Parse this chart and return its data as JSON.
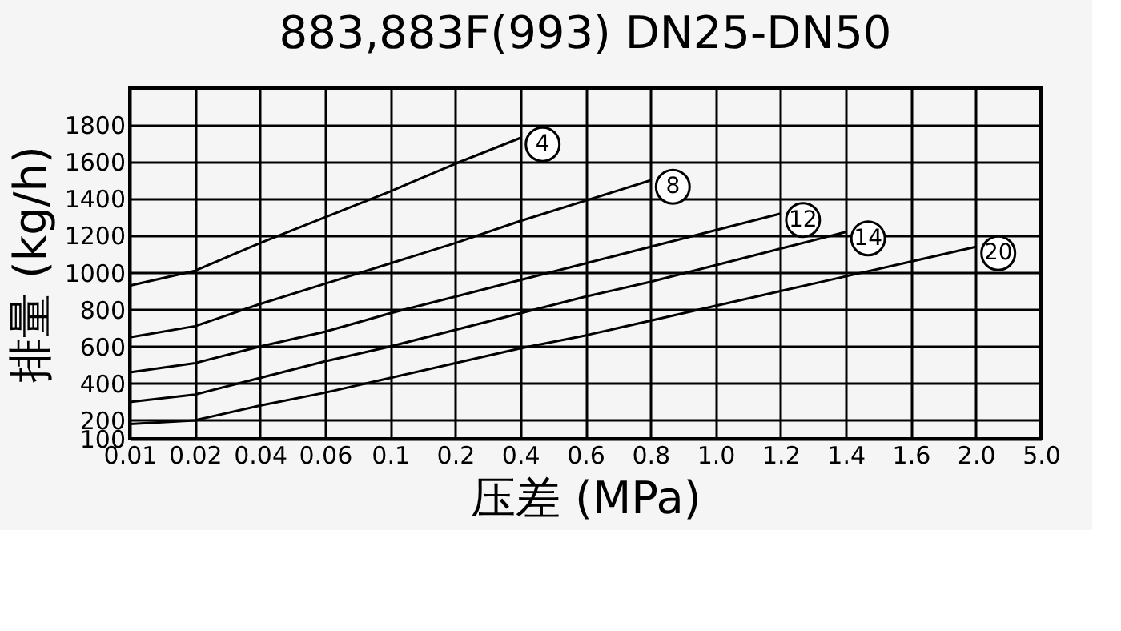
{
  "chart_data": {
    "type": "line",
    "title": "883,883F(993) DN25-DN50",
    "xlabel": "压差 (MPa)",
    "ylabel": "排量 (kg/h)",
    "categories": [
      "0.01",
      "0.02",
      "0.04",
      "0.06",
      "0.1",
      "0.2",
      "0.4",
      "0.6",
      "0.8",
      "1.0",
      "1.2",
      "1.4",
      "1.6",
      "2.0",
      "5.0"
    ],
    "ylim": [
      100,
      2000
    ],
    "yticks": [
      100,
      200,
      400,
      600,
      800,
      1000,
      1200,
      1400,
      1600,
      1800,
      {
        "value": 2000,
        "label": null
      }
    ],
    "grid": true,
    "marker": "none",
    "line_style": "solid",
    "series": [
      {
        "name": "4",
        "color": "#000000",
        "values": [
          930,
          1010,
          1160,
          1300,
          1440,
          1590,
          1730,
          null,
          null,
          null,
          null,
          null,
          null,
          null,
          null
        ]
      },
      {
        "name": "8",
        "color": "#000000",
        "values": [
          650,
          710,
          830,
          940,
          1050,
          1160,
          1280,
          1390,
          1500,
          null,
          null,
          null,
          null,
          null,
          null
        ]
      },
      {
        "name": "12",
        "color": "#000000",
        "values": [
          460,
          510,
          600,
          680,
          780,
          870,
          960,
          1050,
          1140,
          1230,
          1320,
          null,
          null,
          null,
          null
        ]
      },
      {
        "name": "14",
        "color": "#000000",
        "values": [
          300,
          340,
          430,
          520,
          600,
          690,
          780,
          870,
          950,
          1040,
          1130,
          1220,
          null,
          null,
          null
        ]
      },
      {
        "name": "20",
        "color": "#000000",
        "values": [
          180,
          200,
          280,
          350,
          430,
          510,
          590,
          660,
          740,
          820,
          900,
          980,
          1060,
          1140,
          null
        ]
      }
    ]
  }
}
